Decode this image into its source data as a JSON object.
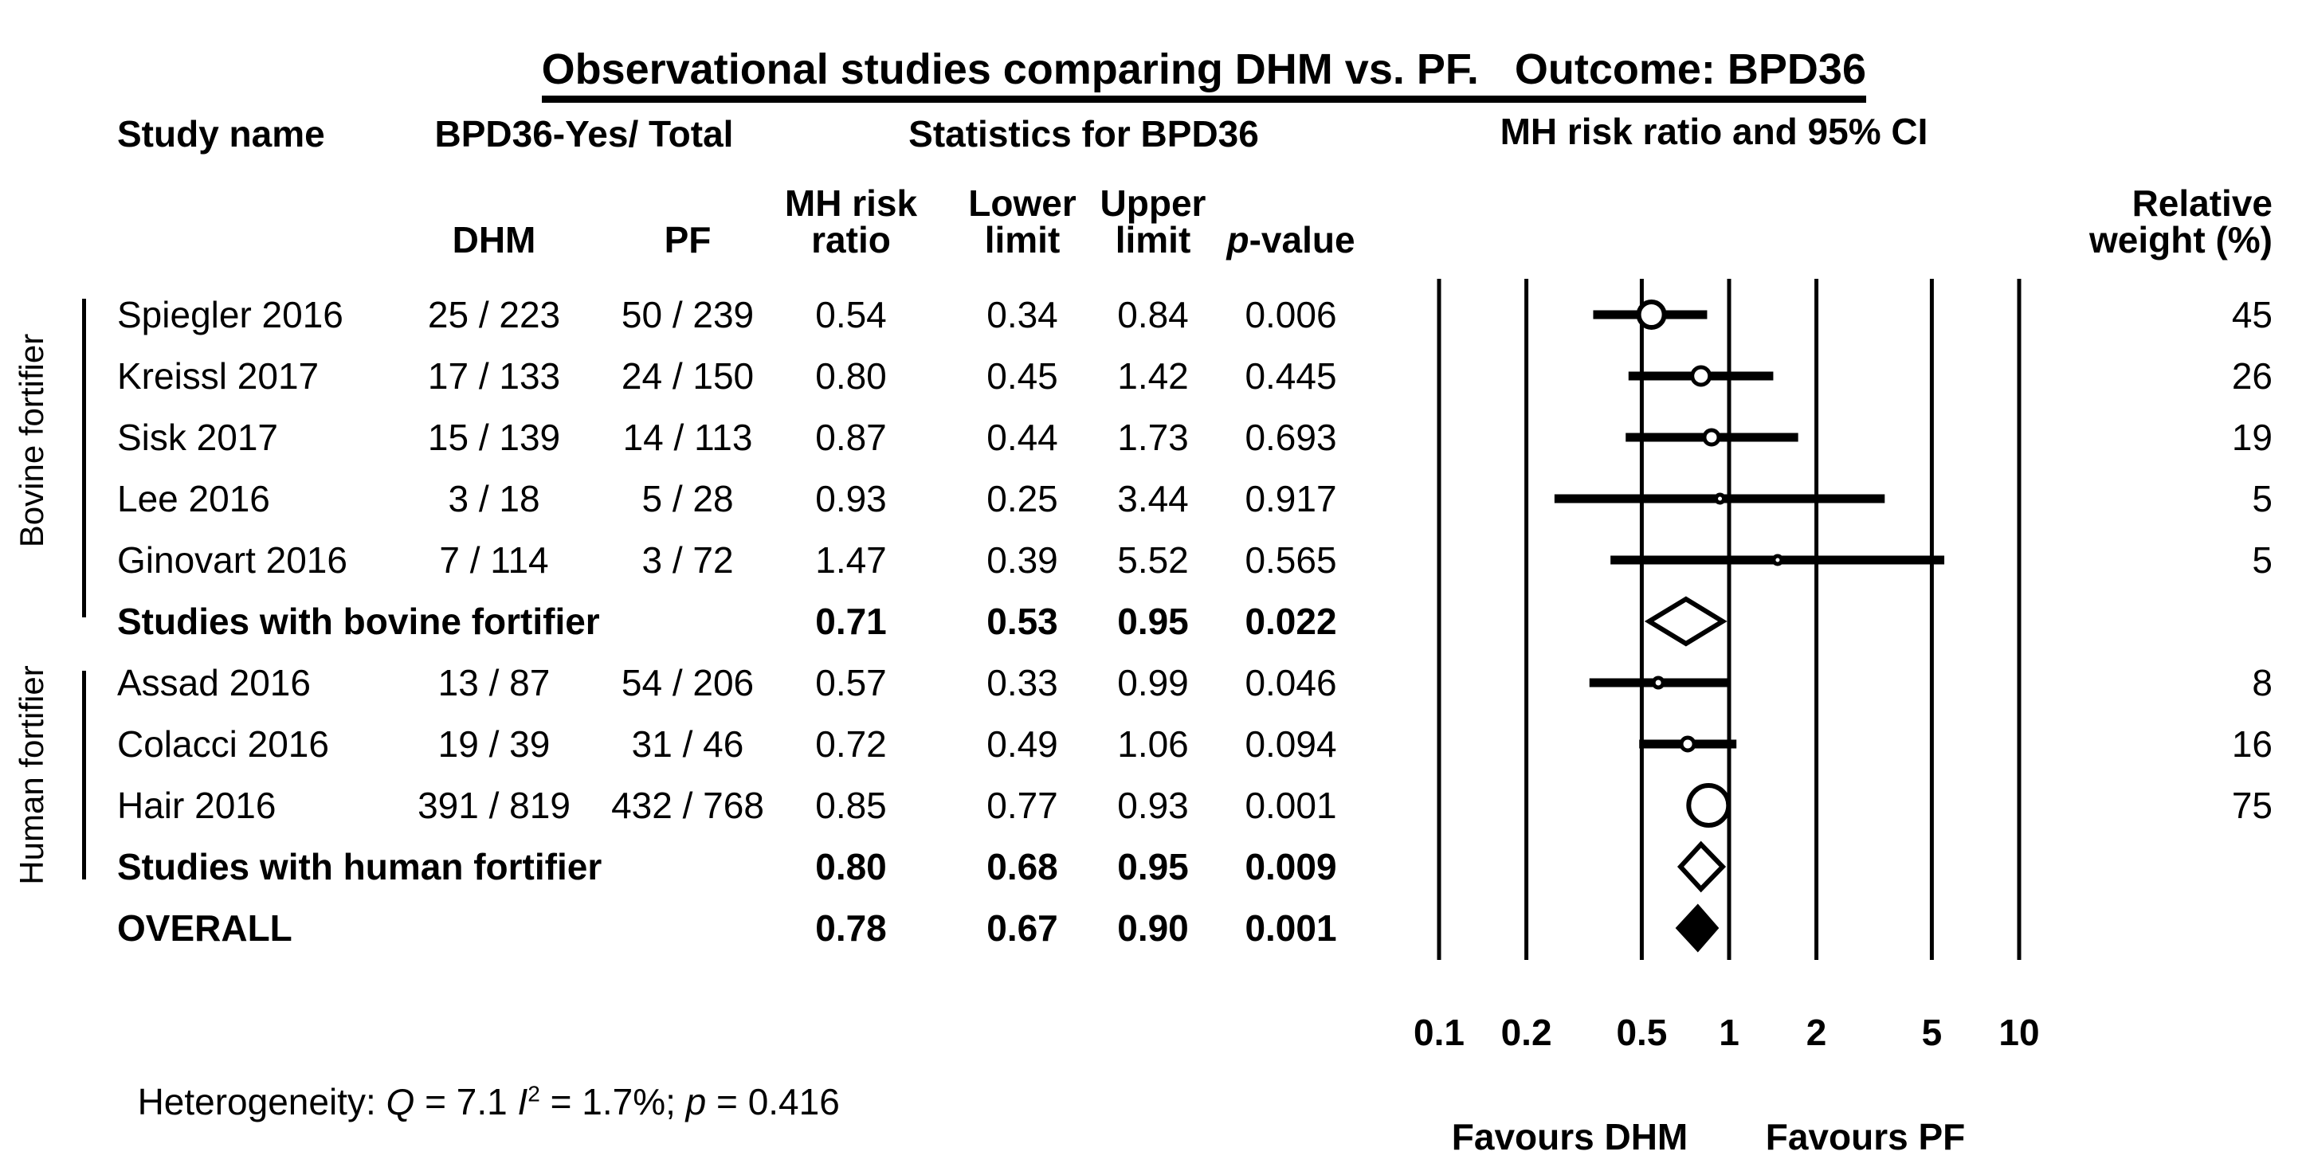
{
  "title": "Observational studies comparing DHM vs. PF.   Outcome: BPD36",
  "header": {
    "study_name": "Study name",
    "events_total": "BPD36-Yes/ Total",
    "statistics": "Statistics for BPD36",
    "plot_header": "MH risk ratio and 95% CI",
    "col_dhm": "DHM",
    "col_pf": "PF",
    "col_rr_line1": "MH risk",
    "col_rr_line2": "ratio",
    "col_lower_line1": "Lower",
    "col_lower_line2": "limit",
    "col_upper_line1": "Upper",
    "col_upper_line2": "limit",
    "col_p_italic": "p",
    "col_p_rest": "-value",
    "col_weight_line1": "Relative",
    "col_weight_line2": "weight (%)"
  },
  "side_labels": {
    "bovine": "Bovine fortifier",
    "human": "Human fortifier"
  },
  "heterogeneity": {
    "prefix": "Heterogeneity: ",
    "q": "Q",
    "q_eq": " = 7.1 ",
    "i": "I",
    "i_sup": "2",
    "i_eq": " = 1.7%; ",
    "p": "p",
    "p_eq": " = 0.416"
  },
  "chart_data": {
    "type": "forest",
    "x_scale": "log10",
    "x_range": [
      0.1,
      10
    ],
    "x_ticks": [
      0.1,
      0.2,
      0.5,
      1,
      2,
      5,
      10
    ],
    "grid": "vertical-lines-at-ticks",
    "favours_left": "Favours DHM",
    "favours_right": "Favours PF",
    "rows": [
      {
        "row_type": "study",
        "group": "bovine",
        "study": "Spiegler 2016",
        "dhm": "25 / 223",
        "pf": "50 / 239",
        "rr": 0.54,
        "lower": 0.34,
        "upper": 0.84,
        "p": "0.006",
        "weight": 45
      },
      {
        "row_type": "study",
        "group": "bovine",
        "study": "Kreissl 2017",
        "dhm": "17 / 133",
        "pf": "24 / 150",
        "rr": 0.8,
        "lower": 0.45,
        "upper": 1.42,
        "p": "0.445",
        "weight": 26
      },
      {
        "row_type": "study",
        "group": "bovine",
        "study": "Sisk 2017",
        "dhm": "15 / 139",
        "pf": "14 / 113",
        "rr": 0.87,
        "lower": 0.44,
        "upper": 1.73,
        "p": "0.693",
        "weight": 19
      },
      {
        "row_type": "study",
        "group": "bovine",
        "study": "Lee 2016",
        "dhm": "3 / 18",
        "pf": "5 / 28",
        "rr": 0.93,
        "lower": 0.25,
        "upper": 3.44,
        "p": "0.917",
        "weight": 5
      },
      {
        "row_type": "study",
        "group": "bovine",
        "study": "Ginovart 2016",
        "dhm": "7 / 114",
        "pf": "3 / 72",
        "rr": 1.47,
        "lower": 0.39,
        "upper": 5.52,
        "p": "0.565",
        "weight": 5
      },
      {
        "row_type": "subtotal",
        "group": "bovine",
        "study": "Studies with bovine fortifier",
        "rr": 0.71,
        "lower": 0.53,
        "upper": 0.95,
        "p": "0.022"
      },
      {
        "row_type": "study",
        "group": "human",
        "study": "Assad 2016",
        "dhm": "13 / 87",
        "pf": "54 / 206",
        "rr": 0.57,
        "lower": 0.33,
        "upper": 0.99,
        "p": "0.046",
        "weight": 8
      },
      {
        "row_type": "study",
        "group": "human",
        "study": "Colacci 2016",
        "dhm": "19 / 39",
        "pf": "31 / 46",
        "rr": 0.72,
        "lower": 0.49,
        "upper": 1.06,
        "p": "0.094",
        "weight": 16
      },
      {
        "row_type": "study",
        "group": "human",
        "study": "Hair 2016",
        "dhm": "391 / 819",
        "pf": "432 / 768",
        "rr": 0.85,
        "lower": 0.77,
        "upper": 0.93,
        "p": "0.001",
        "weight": 75
      },
      {
        "row_type": "subtotal",
        "group": "human",
        "study": "Studies with human fortifier",
        "rr": 0.8,
        "lower": 0.68,
        "upper": 0.95,
        "p": "0.009"
      },
      {
        "row_type": "overall",
        "study": "OVERALL",
        "rr": 0.78,
        "lower": 0.67,
        "upper": 0.9,
        "p": "0.001"
      }
    ]
  }
}
